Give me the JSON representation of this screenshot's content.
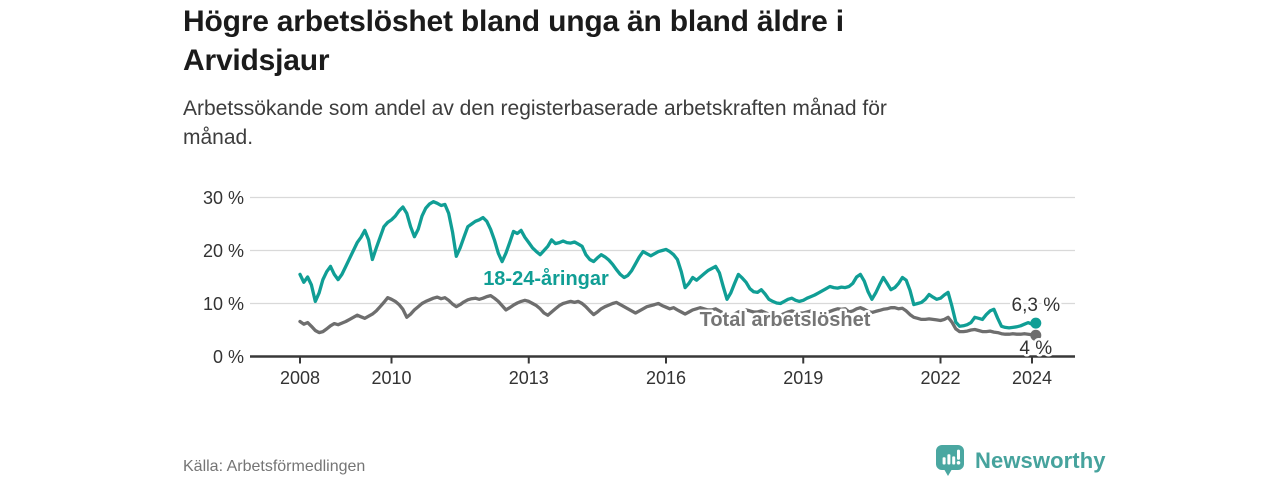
{
  "header": {
    "title_lines": [
      "Högre arbetslöshet bland unga än bland äldre i",
      "Arvidsjaur"
    ],
    "subtitle_lines": [
      "Arbetssökande som andel av den registerbaserade arbetskraften månad för",
      "månad."
    ]
  },
  "footer": {
    "source": "Källa: Arbetsförmedlingen",
    "brand": "Newsworthy",
    "brand_color": "#46A39D",
    "logo_icon": "bar-chart-speech-bubble-icon"
  },
  "chart_data": {
    "type": "line",
    "title": "Högre arbetslöshet bland unga än bland äldre i Arvidsjaur",
    "subtitle": "Arbetssökande som andel av den registerbaserade arbetskraften månad för månad.",
    "x_unit": "month",
    "x_start": "2008-01",
    "x_end": "2024-02",
    "x_tick_years": [
      2008,
      2010,
      2013,
      2016,
      2019,
      2022,
      2024
    ],
    "y_ticks": [
      {
        "value": 30,
        "label": "30 %"
      },
      {
        "value": 20,
        "label": "20 %"
      },
      {
        "value": 10,
        "label": "10 %"
      },
      {
        "value": 0,
        "label": "0 %"
      }
    ],
    "ylim": [
      0,
      32
    ],
    "grid": "horizontal",
    "legend_position": "inline-labels",
    "series": [
      {
        "name": "18-24-åringar",
        "color": "#109E95",
        "end_value": 6.3,
        "end_label": "6,3 %",
        "values": [
          15.5,
          14.0,
          15.0,
          13.5,
          10.4,
          12.0,
          14.5,
          16.0,
          17.0,
          15.5,
          14.5,
          15.5,
          17.0,
          18.5,
          20.0,
          21.5,
          22.5,
          23.8,
          22.0,
          18.3,
          20.5,
          22.5,
          24.5,
          25.3,
          25.8,
          26.5,
          27.5,
          28.2,
          27.0,
          24.5,
          22.6,
          24.0,
          26.5,
          28.0,
          28.8,
          29.2,
          28.9,
          28.5,
          28.7,
          27.0,
          23.5,
          18.9,
          20.5,
          22.5,
          24.5,
          25.0,
          25.5,
          25.8,
          26.2,
          25.5,
          24.0,
          22.0,
          19.5,
          17.9,
          19.5,
          21.5,
          23.6,
          23.2,
          23.8,
          22.5,
          21.5,
          20.5,
          19.8,
          19.2,
          20.0,
          20.8,
          22.0,
          21.3,
          21.5,
          21.8,
          21.5,
          21.4,
          21.6,
          21.2,
          20.8,
          19.2,
          18.3,
          17.9,
          18.6,
          19.2,
          18.8,
          18.2,
          17.4,
          16.4,
          15.5,
          14.9,
          15.3,
          16.2,
          17.5,
          18.8,
          19.8,
          19.4,
          19.0,
          19.4,
          19.8,
          20.0,
          20.2,
          19.8,
          19.2,
          18.3,
          16.0,
          13.0,
          13.8,
          14.9,
          14.4,
          15.0,
          15.6,
          16.2,
          16.6,
          17.0,
          15.8,
          13.2,
          10.8,
          12.0,
          13.8,
          15.5,
          14.8,
          14.0,
          12.8,
          12.2,
          12.1,
          12.6,
          11.8,
          10.8,
          10.4,
          10.1,
          10.0,
          10.4,
          10.8,
          11.0,
          10.6,
          10.4,
          10.6,
          11.0,
          11.3,
          11.6,
          12.0,
          12.4,
          12.8,
          13.2,
          13.0,
          12.9,
          13.1,
          13.0,
          13.2,
          13.8,
          15.0,
          15.5,
          14.2,
          12.2,
          10.8,
          12.0,
          13.5,
          14.9,
          13.8,
          12.6,
          13.0,
          13.8,
          14.9,
          14.4,
          12.5,
          9.8,
          10.0,
          10.2,
          10.8,
          11.7,
          11.2,
          10.8,
          11.0,
          11.6,
          12.1,
          9.5,
          6.5,
          5.7,
          5.8,
          6.0,
          6.4,
          7.4,
          7.2,
          7.0,
          7.9,
          8.6,
          8.9,
          7.2,
          5.7,
          5.5,
          5.4,
          5.5,
          5.6,
          5.8,
          6.1,
          6.4,
          6.1,
          6.3
        ]
      },
      {
        "name": "Total arbetslöshet",
        "color": "#6E6E6E",
        "end_value": 4.0,
        "end_label": "4 %",
        "values": [
          6.6,
          6.1,
          6.4,
          5.7,
          4.9,
          4.5,
          4.7,
          5.2,
          5.8,
          6.2,
          6.0,
          6.3,
          6.6,
          7.0,
          7.4,
          7.8,
          7.5,
          7.2,
          7.6,
          8.0,
          8.6,
          9.4,
          10.2,
          11.1,
          10.8,
          10.4,
          9.8,
          8.9,
          7.4,
          8.0,
          8.8,
          9.4,
          10.0,
          10.4,
          10.7,
          11.0,
          11.2,
          10.9,
          11.1,
          10.6,
          9.9,
          9.4,
          9.8,
          10.3,
          10.7,
          10.9,
          11.0,
          10.8,
          11.0,
          11.3,
          11.5,
          11.0,
          10.4,
          9.6,
          8.8,
          9.2,
          9.7,
          10.1,
          10.4,
          10.6,
          10.4,
          10.0,
          9.6,
          9.0,
          8.2,
          7.8,
          8.4,
          9.0,
          9.6,
          10.0,
          10.2,
          10.4,
          10.2,
          10.4,
          10.0,
          9.4,
          8.6,
          7.9,
          8.4,
          9.0,
          9.4,
          9.7,
          10.0,
          10.2,
          9.8,
          9.4,
          9.0,
          8.6,
          8.2,
          8.6,
          9.0,
          9.4,
          9.6,
          9.8,
          10.0,
          9.6,
          9.3,
          9.0,
          9.2,
          8.8,
          8.4,
          8.0,
          8.4,
          8.8,
          9.0,
          9.2,
          9.0,
          8.8,
          8.8,
          9.0,
          8.6,
          8.2,
          7.8,
          7.6,
          8.0,
          8.4,
          8.6,
          8.8,
          8.6,
          8.4,
          8.4,
          8.6,
          8.3,
          8.0,
          7.7,
          7.5,
          7.8,
          8.1,
          8.4,
          8.6,
          8.4,
          8.2,
          8.2,
          8.4,
          8.6,
          8.4,
          8.1,
          7.9,
          8.2,
          8.5,
          8.8,
          9.0,
          8.9,
          9.0,
          8.4,
          8.6,
          9.0,
          9.2,
          8.9,
          8.5,
          8.3,
          8.5,
          8.7,
          8.9,
          9.0,
          9.2,
          9.2,
          9.0,
          9.1,
          8.6,
          7.9,
          7.4,
          7.2,
          7.0,
          7.0,
          7.1,
          7.0,
          6.9,
          6.8,
          7.0,
          7.4,
          6.5,
          5.2,
          4.7,
          4.7,
          4.8,
          5.0,
          5.1,
          4.9,
          4.7,
          4.7,
          4.8,
          4.6,
          4.5,
          4.3,
          4.2,
          4.2,
          4.3,
          4.2,
          4.2,
          4.3,
          4.2,
          4.1,
          4.0
        ]
      }
    ]
  }
}
